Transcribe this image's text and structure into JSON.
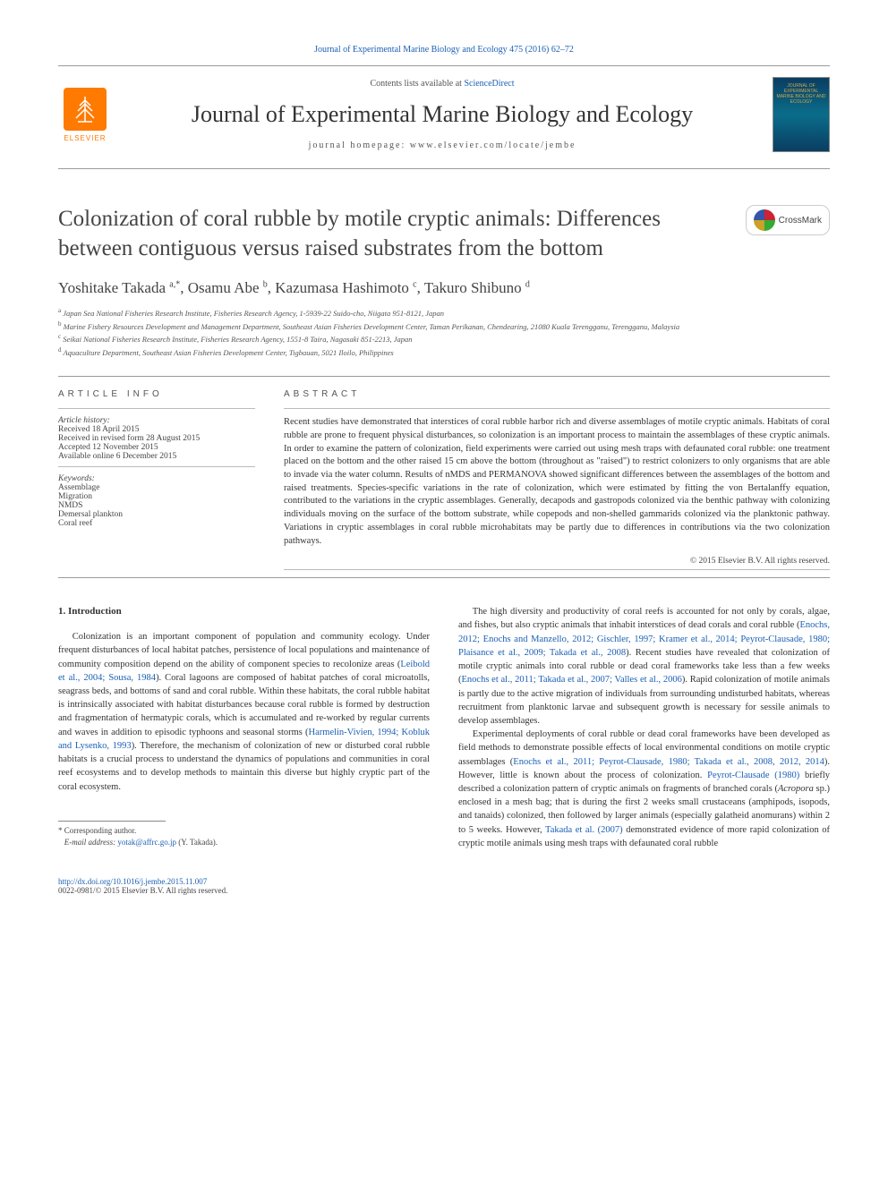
{
  "header": {
    "citation": "Journal of Experimental Marine Biology and Ecology 475 (2016) 62–72",
    "contents_prefix": "Contents lists available at ",
    "contents_link": "ScienceDirect",
    "journal_name": "Journal of Experimental Marine Biology and Ecology",
    "homepage_prefix": "journal homepage: ",
    "homepage": "www.elsevier.com/locate/jembe",
    "publisher": "ELSEVIER",
    "cover_text": "JOURNAL OF EXPERIMENTAL MARINE BIOLOGY AND ECOLOGY",
    "crossmark": "CrossMark"
  },
  "article": {
    "title": "Colonization of coral rubble by motile cryptic animals: Differences between contiguous versus raised substrates from the bottom",
    "authors_html": "Yoshitake Takada <sup>a,*</sup>, Osamu Abe <sup>b</sup>, Kazumasa Hashimoto <sup>c</sup>, Takuro Shibuno <sup>d</sup>",
    "affiliations": [
      {
        "key": "a",
        "text": "Japan Sea National Fisheries Research Institute, Fisheries Research Agency, 1-5939-22 Suido-cho, Niigata 951-8121, Japan"
      },
      {
        "key": "b",
        "text": "Marine Fishery Resources Development and Management Department, Southeast Asian Fisheries Development Center, Taman Perikanan, Chendearing, 21080 Kuala Terengganu, Terengganu, Malaysia"
      },
      {
        "key": "c",
        "text": "Seikai National Fisheries Research Institute, Fisheries Research Agency, 1551-8 Taira, Nagasaki 851-2213, Japan"
      },
      {
        "key": "d",
        "text": "Aquaculture Department, Southeast Asian Fisheries Development Center, Tigbauan, 5021 Iloilo, Philippines"
      }
    ]
  },
  "info": {
    "heading": "ARTICLE INFO",
    "history_label": "Article history:",
    "history": [
      "Received 18 April 2015",
      "Received in revised form 28 August 2015",
      "Accepted 12 November 2015",
      "Available online 6 December 2015"
    ],
    "keywords_label": "Keywords:",
    "keywords": [
      "Assemblage",
      "Migration",
      "NMDS",
      "Demersal plankton",
      "Coral reef"
    ]
  },
  "abstract": {
    "heading": "ABSTRACT",
    "text": "Recent studies have demonstrated that interstices of coral rubble harbor rich and diverse assemblages of motile cryptic animals. Habitats of coral rubble are prone to frequent physical disturbances, so colonization is an important process to maintain the assemblages of these cryptic animals. In order to examine the pattern of colonization, field experiments were carried out using mesh traps with defaunated coral rubble: one treatment placed on the bottom and the other raised 15 cm above the bottom (throughout as \"raised\") to restrict colonizers to only organisms that are able to invade via the water column. Results of nMDS and PERMANOVA showed significant differences between the assemblages of the bottom and raised treatments. Species-specific variations in the rate of colonization, which were estimated by fitting the von Bertalanffy equation, contributed to the variations in the cryptic assemblages. Generally, decapods and gastropods colonized via the benthic pathway with colonizing individuals moving on the surface of the bottom substrate, while copepods and non-shelled gammarids colonized via the planktonic pathway. Variations in cryptic assemblages in coral rubble microhabitats may be partly due to differences in contributions via the two colonization pathways.",
    "copyright": "© 2015 Elsevier B.V. All rights reserved."
  },
  "body": {
    "section_heading": "1. Introduction",
    "left": [
      "Colonization is an important component of population and community ecology. Under frequent disturbances of local habitat patches, persistence of local populations and maintenance of community composition depend on the ability of component species to recolonize areas (<a href='#'>Leibold et al., 2004; Sousa, 1984</a>). Coral lagoons are composed of habitat patches of coral microatolls, seagrass beds, and bottoms of sand and coral rubble. Within these habitats, the coral rubble habitat is intrinsically associated with habitat disturbances because coral rubble is formed by destruction and fragmentation of hermatypic corals, which is accumulated and re-worked by regular currents and waves in addition to episodic typhoons and seasonal storms (<a href='#'>Harmelin-Vivien, 1994; Kobluk and Lysenko, 1993</a>). Therefore, the mechanism of colonization of new or disturbed coral rubble habitats is a crucial process to understand the dynamics of populations and communities in coral reef ecosystems and to develop methods to maintain this diverse but highly cryptic part of the coral ecosystem."
    ],
    "right": [
      "The high diversity and productivity of coral reefs is accounted for not only by corals, algae, and fishes, but also cryptic animals that inhabit interstices of dead corals and coral rubble (<a href='#'>Enochs, 2012; Enochs and Manzello, 2012; Gischler, 1997; Kramer et al., 2014; Peyrot-Clausade, 1980; Plaisance et al., 2009; Takada et al., 2008</a>). Recent studies have revealed that colonization of motile cryptic animals into coral rubble or dead coral frameworks take less than a few weeks (<a href='#'>Enochs et al., 2011; Takada et al., 2007; Valles et al., 2006</a>). Rapid colonization of motile animals is partly due to the active migration of individuals from surrounding undisturbed habitats, whereas recruitment from planktonic larvae and subsequent growth is necessary for sessile animals to develop assemblages.",
      "Experimental deployments of coral rubble or dead coral frameworks have been developed as field methods to demonstrate possible effects of local environmental conditions on motile cryptic assemblages (<a href='#'>Enochs et al., 2011; Peyrot-Clausade, 1980; Takada et al., 2008, 2012, 2014</a>). However, little is known about the process of colonization. <a href='#'>Peyrot-Clausade (1980)</a> briefly described a colonization pattern of cryptic animals on fragments of branched corals (<i>Acropora</i> sp.) enclosed in a mesh bag; that is during the first 2 weeks small crustaceans (amphipods, isopods, and tanaids) colonized, then followed by larger animals (especially galatheid anomurans) within 2 to 5 weeks. However, <a href='#'>Takada et al. (2007)</a> demonstrated evidence of more rapid colonization of cryptic motile animals using mesh traps with defaunated coral rubble"
    ]
  },
  "corresponding": {
    "star": "*",
    "label": "Corresponding author.",
    "email_label": "E-mail address:",
    "email": "yotak@affrc.go.jp",
    "email_name": "(Y. Takada)."
  },
  "footer": {
    "doi": "http://dx.doi.org/10.1016/j.jembe.2015.11.007",
    "issn_line": "0022-0981/© 2015 Elsevier B.V. All rights reserved."
  },
  "colors": {
    "link": "#1a5fb4",
    "elsevier_orange": "#ff7a00",
    "text": "#333333",
    "muted": "#555555",
    "rule": "#999999"
  },
  "typography": {
    "journal_name_pt": 26,
    "title_pt": 25,
    "authors_pt": 17,
    "body_pt": 10.5,
    "affil_pt": 8.5,
    "footer_pt": 9
  }
}
